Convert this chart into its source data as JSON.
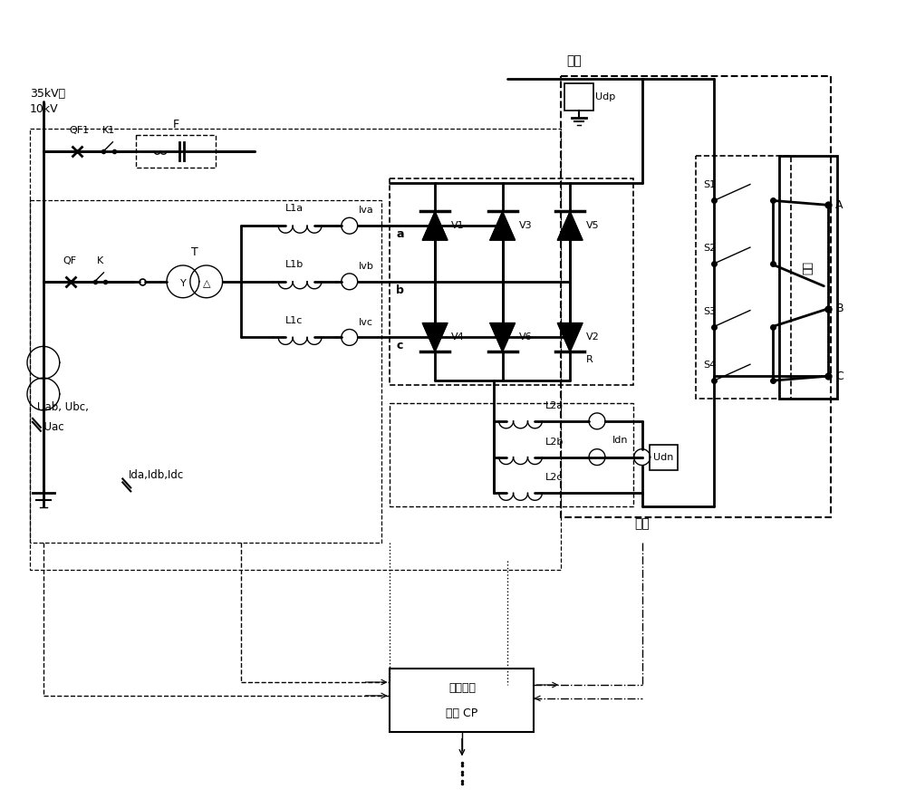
{
  "bg_color": "#ffffff",
  "figsize": [
    10.0,
    8.82
  ],
  "dpi": 100,
  "texts": {
    "voltage": "35kV或\n10kV",
    "qf1": "QF1",
    "k1": "K1",
    "f": "F",
    "qf": "QF",
    "k": "K",
    "t": "T",
    "l1a": "L1a",
    "l1b": "L1b",
    "l1c": "L1c",
    "iva": "Iva",
    "ivb": "Ivb",
    "ivc": "Ivc",
    "v1": "V1",
    "v2": "V2",
    "v3": "V3",
    "v4": "V4",
    "v5": "V5",
    "v6": "V6",
    "r_label": "R",
    "a_label": "a",
    "b_label": "b",
    "c_label": "c",
    "udp": "Udp",
    "udn": "Udn",
    "idn": "Idn",
    "l2a": "L2a",
    "l2b": "L2b",
    "l2c": "L2c",
    "pos_pole": "正极",
    "neg_pole": "负极",
    "s1": "S1",
    "s2": "S2",
    "s3": "S3",
    "s4": "S4",
    "wire": "导线",
    "A": "A",
    "B": "B",
    "C": "C",
    "uab": "Uab, Ubc,",
    "uac": "  Uac",
    "ida": "Ida,Idb,Idc",
    "ctrl": "控制保护",
    "ctrl2": "系统 CP"
  }
}
